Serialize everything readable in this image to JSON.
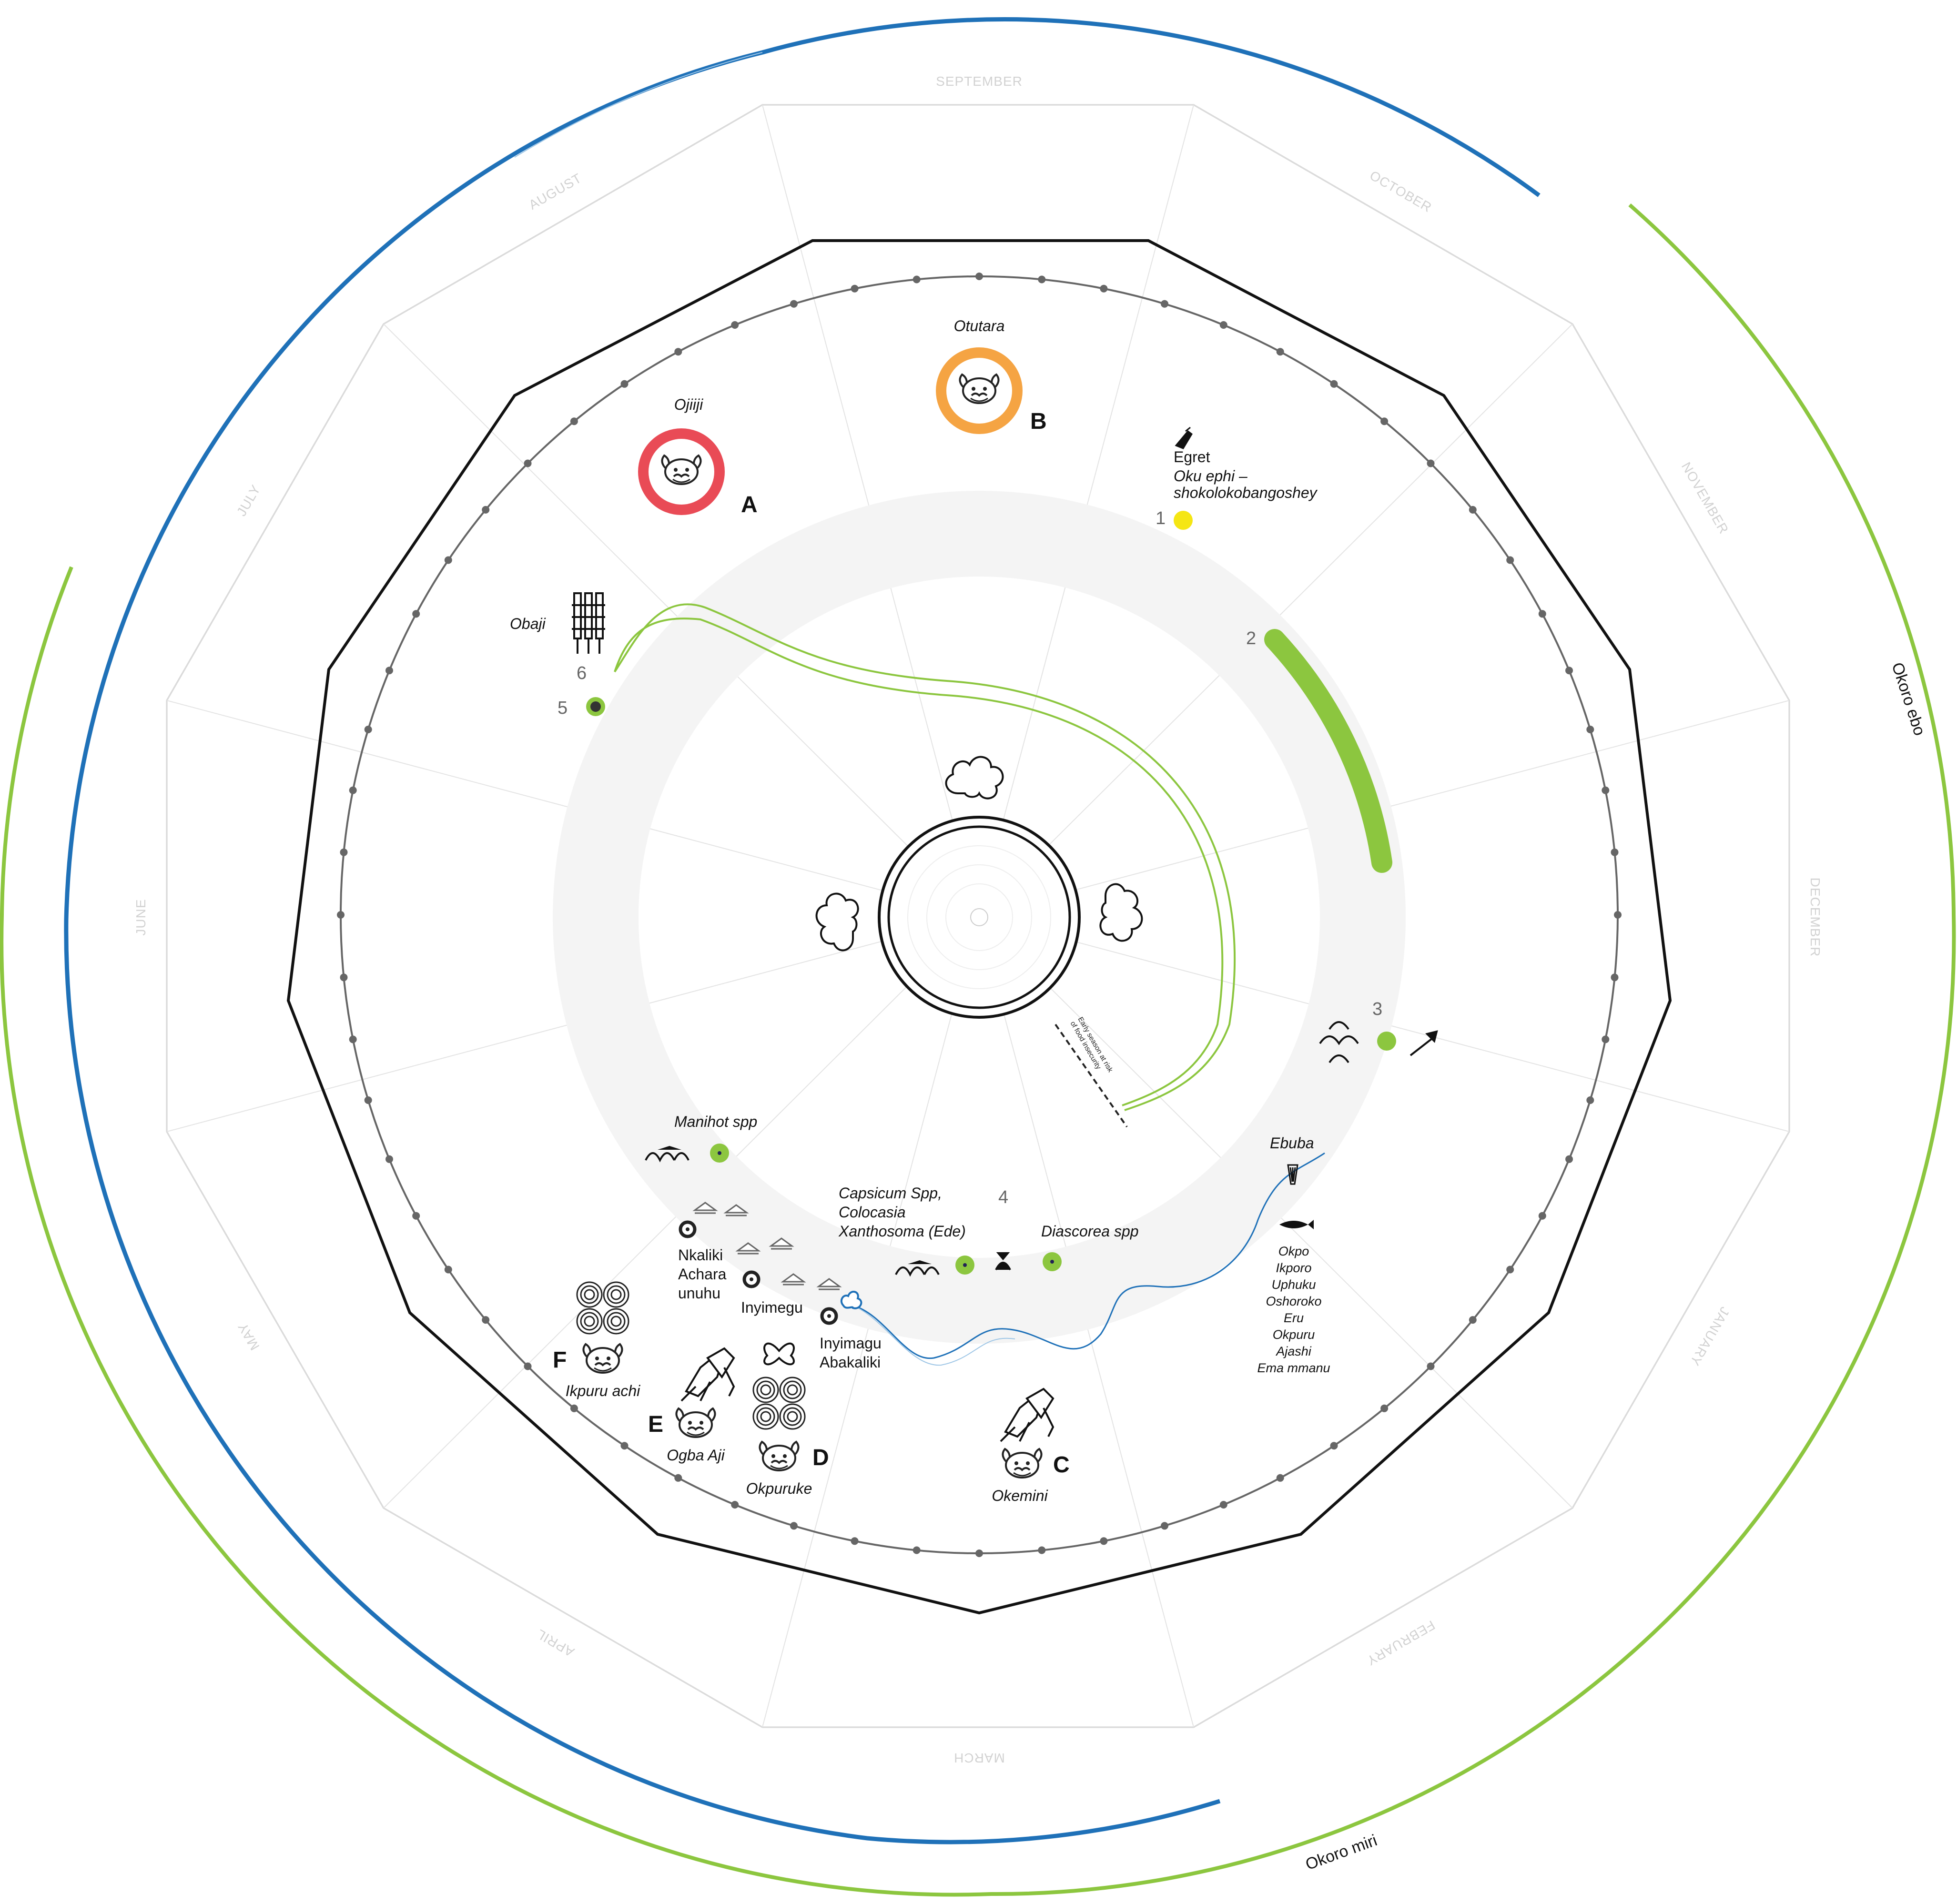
{
  "colors": {
    "fresh_water": "#1f71b8",
    "salt_water": "#8cc63f",
    "tick_ring": "#666666",
    "month_text": "#d2d2d2",
    "grey_band": "#f4f4f4",
    "marker_A": "#e94b56",
    "marker_B": "#f5a443",
    "marker_1": "#f5e614",
    "green": "#8cc63f"
  },
  "outer_rings": {
    "okoro_ebo": "Okoro ebo",
    "okoro_miri": "Okoro miri"
  },
  "months": [
    "SEPTEMBER",
    "OCTOBER",
    "NOVEMBER",
    "DECEMBER",
    "JANUARY",
    "FEBRUARY",
    "MARCH",
    "APRIL",
    "MAY",
    "JUNE",
    "JULY",
    "AUGUST"
  ],
  "markers": {
    "A": {
      "letter": "A",
      "name": "Ojiiji"
    },
    "B": {
      "letter": "B",
      "name": "Otutara"
    },
    "C": {
      "letter": "C",
      "name": "Okemini"
    },
    "D": {
      "letter": "D",
      "name": "Okpuruke"
    },
    "E": {
      "letter": "E",
      "name": "Ogba Aji"
    },
    "F": {
      "letter": "F",
      "name": "Ikpuru achi"
    }
  },
  "events": {
    "e1": {
      "num": "1",
      "title": "Egret",
      "line2": "Oku ephi –",
      "line3": "shokolokobangoshey"
    },
    "e2": {
      "num": "2"
    },
    "e3": {
      "num": "3"
    },
    "e4": {
      "num": "4"
    },
    "e5": {
      "num": "5"
    },
    "e6": {
      "num": "6",
      "name": "Obaji"
    }
  },
  "crops": {
    "manihot": "Manihot spp",
    "capsicum": [
      "Capsicum Spp,",
      "Colocasia",
      "Xanthosoma (Ede)"
    ],
    "diascorea": "Diascorea  spp"
  },
  "places": {
    "nkaliki": [
      "Nkaliki",
      "Achara",
      "unuhu"
    ],
    "inyimegu": "Inyimegu",
    "inyimagu_abakaliki": [
      "Inyimagu",
      "Abakaliki"
    ]
  },
  "fish": {
    "ebuba": "Ebuba",
    "list": [
      "Okpo",
      "Ikporo",
      "Uphuku",
      "Oshoroko",
      "Eru",
      "Okpuru",
      "Ajashi",
      "Ema mmanu"
    ]
  },
  "annotation": [
    "Early season at risk",
    "of food insecurity"
  ]
}
